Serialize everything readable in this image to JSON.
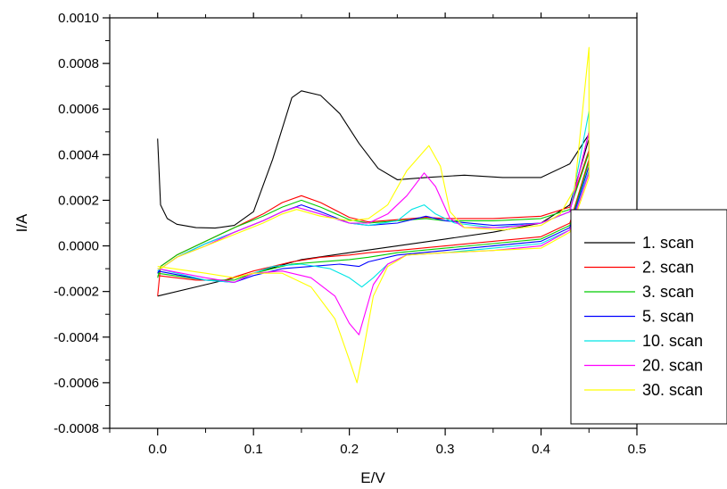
{
  "chart_data": {
    "type": "line",
    "title": "",
    "xlabel": "E/V",
    "ylabel": "I/A",
    "xlim": [
      -0.05,
      0.5
    ],
    "ylim": [
      -0.0008,
      0.001
    ],
    "x_ticks": [
      0.0,
      0.1,
      0.2,
      0.3,
      0.4,
      0.5
    ],
    "x_tick_labels": [
      "0.0",
      "0.1",
      "0.2",
      "0.3",
      "0.4",
      "0.5"
    ],
    "y_ticks": [
      -0.0008,
      -0.0006,
      -0.0004,
      -0.0002,
      0.0,
      0.0002,
      0.0004,
      0.0006,
      0.0008,
      0.001
    ],
    "y_tick_labels": [
      "-0.0008",
      "-0.0006",
      "-0.0004",
      "-0.0002",
      "0.0000",
      "0.0002",
      "0.0004",
      "0.0006",
      "0.0008",
      "0.0010"
    ],
    "grid": false,
    "legend_position": "right",
    "series": [
      {
        "name": "1. scan",
        "color": "#000000",
        "forward": [
          [
            0.0,
            0.00047
          ],
          [
            0.003,
            0.00018
          ],
          [
            0.01,
            0.00012
          ],
          [
            0.02,
            9.5e-05
          ],
          [
            0.04,
            8e-05
          ],
          [
            0.06,
            7.8e-05
          ],
          [
            0.08,
            9e-05
          ],
          [
            0.1,
            0.00015
          ],
          [
            0.12,
            0.00038
          ],
          [
            0.14,
            0.00065
          ],
          [
            0.15,
            0.00068
          ],
          [
            0.17,
            0.00066
          ],
          [
            0.19,
            0.00058
          ],
          [
            0.21,
            0.00045
          ],
          [
            0.23,
            0.00034
          ],
          [
            0.25,
            0.00029
          ],
          [
            0.28,
            0.0003
          ],
          [
            0.32,
            0.00031
          ],
          [
            0.36,
            0.0003
          ],
          [
            0.4,
            0.0003
          ],
          [
            0.43,
            0.00036
          ],
          [
            0.45,
            0.00049
          ]
        ],
        "reverse": [
          [
            0.45,
            0.00047
          ],
          [
            0.43,
            0.00018
          ],
          [
            0.4,
            0.0001
          ],
          [
            0.35,
            6e-05
          ],
          [
            0.3,
            3e-05
          ],
          [
            0.25,
            0.0
          ],
          [
            0.2,
            -3e-05
          ],
          [
            0.15,
            -6e-05
          ],
          [
            0.1,
            -0.00012
          ],
          [
            0.05,
            -0.00017
          ],
          [
            0.0,
            -0.00022
          ]
        ]
      },
      {
        "name": "2. scan",
        "color": "#ff0000",
        "forward": [
          [
            0.0,
            -0.00022
          ],
          [
            0.003,
            -9e-05
          ],
          [
            0.02,
            -4e-05
          ],
          [
            0.05,
            2e-05
          ],
          [
            0.08,
            8e-05
          ],
          [
            0.11,
            0.00014
          ],
          [
            0.13,
            0.00019
          ],
          [
            0.15,
            0.00022
          ],
          [
            0.17,
            0.00019
          ],
          [
            0.2,
            0.000125
          ],
          [
            0.22,
            0.000105
          ],
          [
            0.25,
            0.000115
          ],
          [
            0.28,
            0.000125
          ],
          [
            0.3,
            0.00012
          ],
          [
            0.35,
            0.00012
          ],
          [
            0.4,
            0.00013
          ],
          [
            0.43,
            0.00017
          ],
          [
            0.45,
            0.00042
          ]
        ],
        "reverse": [
          [
            0.45,
            0.00038
          ],
          [
            0.43,
            0.0001
          ],
          [
            0.4,
            4e-05
          ],
          [
            0.35,
            2e-05
          ],
          [
            0.3,
            0.0
          ],
          [
            0.25,
            -2e-05
          ],
          [
            0.22,
            -3e-05
          ],
          [
            0.2,
            -4e-05
          ],
          [
            0.17,
            -5e-05
          ],
          [
            0.14,
            -7e-05
          ],
          [
            0.1,
            -0.00011
          ],
          [
            0.07,
            -0.00015
          ],
          [
            0.04,
            -0.00015
          ],
          [
            0.0,
            -0.00013
          ]
        ]
      },
      {
        "name": "3. scan",
        "color": "#00cc00",
        "forward": [
          [
            0.0,
            -0.00014
          ],
          [
            0.003,
            -9e-05
          ],
          [
            0.02,
            -4e-05
          ],
          [
            0.05,
            2e-05
          ],
          [
            0.08,
            8e-05
          ],
          [
            0.11,
            0.00013
          ],
          [
            0.13,
            0.00017
          ],
          [
            0.15,
            0.0002
          ],
          [
            0.17,
            0.00017
          ],
          [
            0.2,
            0.000115
          ],
          [
            0.22,
            0.0001
          ],
          [
            0.25,
            0.00011
          ],
          [
            0.28,
            0.00012
          ],
          [
            0.3,
            0.00011
          ],
          [
            0.35,
            0.00011
          ],
          [
            0.4,
            0.00012
          ],
          [
            0.43,
            0.00016
          ],
          [
            0.45,
            0.00041
          ]
        ],
        "reverse": [
          [
            0.45,
            0.00037
          ],
          [
            0.43,
            9e-05
          ],
          [
            0.4,
            3e-05
          ],
          [
            0.35,
            1e-05
          ],
          [
            0.3,
            -1e-05
          ],
          [
            0.25,
            -3e-05
          ],
          [
            0.22,
            -5e-05
          ],
          [
            0.2,
            -6e-05
          ],
          [
            0.17,
            -7e-05
          ],
          [
            0.14,
            -8e-05
          ],
          [
            0.1,
            -0.00012
          ],
          [
            0.08,
            -0.00015
          ],
          [
            0.05,
            -0.00015
          ],
          [
            0.0,
            -0.00012
          ]
        ]
      },
      {
        "name": "5. scan",
        "color": "#0000ff",
        "forward": [
          [
            0.0,
            -0.00012
          ],
          [
            0.003,
            -0.0001
          ],
          [
            0.02,
            -5e-05
          ],
          [
            0.05,
            1e-05
          ],
          [
            0.08,
            6e-05
          ],
          [
            0.11,
            0.00011
          ],
          [
            0.13,
            0.00015
          ],
          [
            0.15,
            0.00018
          ],
          [
            0.17,
            0.00015
          ],
          [
            0.2,
            0.0001
          ],
          [
            0.22,
            9e-05
          ],
          [
            0.25,
            0.0001
          ],
          [
            0.28,
            0.00013
          ],
          [
            0.3,
            0.00011
          ],
          [
            0.35,
            9e-05
          ],
          [
            0.4,
            0.0001
          ],
          [
            0.43,
            0.00015
          ],
          [
            0.45,
            0.0005
          ]
        ],
        "reverse": [
          [
            0.45,
            0.00035
          ],
          [
            0.43,
            8e-05
          ],
          [
            0.4,
            2e-05
          ],
          [
            0.35,
            0.0
          ],
          [
            0.3,
            -2e-05
          ],
          [
            0.25,
            -4e-05
          ],
          [
            0.22,
            -7e-05
          ],
          [
            0.21,
            -9e-05
          ],
          [
            0.19,
            -8e-05
          ],
          [
            0.16,
            -9e-05
          ],
          [
            0.13,
            -0.0001
          ],
          [
            0.1,
            -0.00013
          ],
          [
            0.08,
            -0.00016
          ],
          [
            0.05,
            -0.00015
          ],
          [
            0.0,
            -0.00011
          ]
        ]
      },
      {
        "name": "10. scan",
        "color": "#00e5e5",
        "forward": [
          [
            0.0,
            -0.00011
          ],
          [
            0.003,
            -0.0001
          ],
          [
            0.02,
            -5e-05
          ],
          [
            0.05,
            1e-05
          ],
          [
            0.08,
            6e-05
          ],
          [
            0.11,
            0.00011
          ],
          [
            0.13,
            0.00015
          ],
          [
            0.145,
            0.00017
          ],
          [
            0.17,
            0.00014
          ],
          [
            0.2,
            0.0001
          ],
          [
            0.22,
            9e-05
          ],
          [
            0.25,
            0.00011
          ],
          [
            0.265,
            0.00016
          ],
          [
            0.278,
            0.00018
          ],
          [
            0.29,
            0.00014
          ],
          [
            0.31,
            0.0001
          ],
          [
            0.35,
            8e-05
          ],
          [
            0.4,
            0.0001
          ],
          [
            0.43,
            0.00015
          ],
          [
            0.45,
            0.00059
          ]
        ],
        "reverse": [
          [
            0.45,
            0.00033
          ],
          [
            0.43,
            7e-05
          ],
          [
            0.4,
            1e-05
          ],
          [
            0.35,
            -1e-05
          ],
          [
            0.3,
            -3e-05
          ],
          [
            0.26,
            -4e-05
          ],
          [
            0.24,
            -8e-05
          ],
          [
            0.225,
            -0.00014
          ],
          [
            0.213,
            -0.00018
          ],
          [
            0.2,
            -0.00014
          ],
          [
            0.18,
            -0.0001
          ],
          [
            0.15,
            -8e-05
          ],
          [
            0.12,
            -9e-05
          ],
          [
            0.1,
            -0.00012
          ],
          [
            0.08,
            -0.00016
          ],
          [
            0.05,
            -0.00015
          ],
          [
            0.0,
            -0.0001
          ]
        ]
      },
      {
        "name": "20. scan",
        "color": "#ff00ff",
        "forward": [
          [
            0.0,
            -0.0001
          ],
          [
            0.003,
            -0.0001
          ],
          [
            0.02,
            -5e-05
          ],
          [
            0.05,
            0.0
          ],
          [
            0.08,
            6e-05
          ],
          [
            0.11,
            0.00011
          ],
          [
            0.13,
            0.00015
          ],
          [
            0.145,
            0.00017
          ],
          [
            0.17,
            0.00014
          ],
          [
            0.2,
            0.0001
          ],
          [
            0.22,
            0.0001
          ],
          [
            0.24,
            0.00014
          ],
          [
            0.26,
            0.00022
          ],
          [
            0.278,
            0.00032
          ],
          [
            0.29,
            0.00026
          ],
          [
            0.305,
            0.00012
          ],
          [
            0.32,
            8e-05
          ],
          [
            0.36,
            8e-05
          ],
          [
            0.4,
            0.0001
          ],
          [
            0.43,
            0.00015
          ],
          [
            0.45,
            0.0005
          ]
        ],
        "reverse": [
          [
            0.45,
            0.00032
          ],
          [
            0.43,
            7e-05
          ],
          [
            0.4,
            0.0
          ],
          [
            0.35,
            -2e-05
          ],
          [
            0.3,
            -3e-05
          ],
          [
            0.26,
            -4e-05
          ],
          [
            0.24,
            -8e-05
          ],
          [
            0.225,
            -0.00017
          ],
          [
            0.21,
            -0.00039
          ],
          [
            0.2,
            -0.00034
          ],
          [
            0.185,
            -0.00022
          ],
          [
            0.16,
            -0.00014
          ],
          [
            0.13,
            -0.00011
          ],
          [
            0.1,
            -0.00012
          ],
          [
            0.08,
            -0.00016
          ],
          [
            0.05,
            -0.00014
          ],
          [
            0.0,
            -0.0001
          ]
        ]
      },
      {
        "name": "30. scan",
        "color": "#ffff00",
        "forward": [
          [
            0.0,
            -0.0001
          ],
          [
            0.003,
            -0.0001
          ],
          [
            0.02,
            -5e-05
          ],
          [
            0.05,
            0.0
          ],
          [
            0.08,
            5e-05
          ],
          [
            0.11,
            0.0001
          ],
          [
            0.13,
            0.00014
          ],
          [
            0.145,
            0.00016
          ],
          [
            0.17,
            0.00013
          ],
          [
            0.2,
            0.00011
          ],
          [
            0.22,
            0.00012
          ],
          [
            0.24,
            0.00018
          ],
          [
            0.26,
            0.00033
          ],
          [
            0.283,
            0.00044
          ],
          [
            0.295,
            0.00035
          ],
          [
            0.305,
            0.00015
          ],
          [
            0.32,
            8e-05
          ],
          [
            0.36,
            7e-05
          ],
          [
            0.4,
            9e-05
          ],
          [
            0.42,
            0.00014
          ],
          [
            0.435,
            0.00025
          ],
          [
            0.45,
            0.00087
          ]
        ],
        "reverse": [
          [
            0.45,
            0.0003
          ],
          [
            0.43,
            6e-05
          ],
          [
            0.4,
            -1e-05
          ],
          [
            0.35,
            -2e-05
          ],
          [
            0.3,
            -3e-05
          ],
          [
            0.26,
            -4e-05
          ],
          [
            0.24,
            -9e-05
          ],
          [
            0.225,
            -0.00022
          ],
          [
            0.215,
            -0.00045
          ],
          [
            0.208,
            -0.0006
          ],
          [
            0.2,
            -0.0005
          ],
          [
            0.185,
            -0.00032
          ],
          [
            0.16,
            -0.00018
          ],
          [
            0.13,
            -0.00012
          ],
          [
            0.1,
            -0.00012
          ],
          [
            0.08,
            -0.00014
          ],
          [
            0.05,
            -0.00012
          ],
          [
            0.0,
            -9e-05
          ]
        ]
      }
    ]
  }
}
